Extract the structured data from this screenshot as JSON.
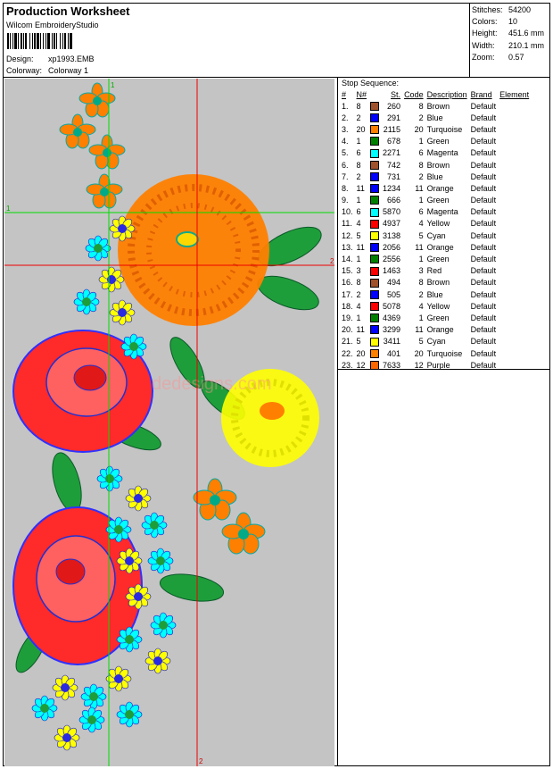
{
  "header": {
    "title": "Production Worksheet",
    "company": "Wilcom EmbroideryStudio",
    "design_label": "Design:",
    "design_value": "xp1993.EMB",
    "colorway_label": "Colorway:",
    "colorway_value": "Colorway 1"
  },
  "stats": [
    {
      "label": "Stitches:",
      "value": "54200"
    },
    {
      "label": "Colors:",
      "value": "10"
    },
    {
      "label": "Height:",
      "value": "451.6 mm"
    },
    {
      "label": "Width:",
      "value": "210.1 mm"
    },
    {
      "label": "Zoom:",
      "value": "0.57"
    }
  ],
  "stop_sequence": {
    "title": "Stop Sequence:",
    "columns": [
      "#",
      "N#",
      "St.",
      "Code",
      "Description",
      "Brand",
      "Element"
    ],
    "rows": [
      {
        "idx": "1.",
        "n": "8",
        "color": "#a0522d",
        "st": "260",
        "code": "8",
        "desc": "Brown",
        "brand": "Default"
      },
      {
        "idx": "2.",
        "n": "2",
        "color": "#0000ff",
        "st": "291",
        "code": "2",
        "desc": "Blue",
        "brand": "Default"
      },
      {
        "idx": "3.",
        "n": "20",
        "color": "#ff7f00",
        "st": "2115",
        "code": "20",
        "desc": "Turquoise",
        "brand": "Default"
      },
      {
        "idx": "4.",
        "n": "1",
        "color": "#008000",
        "st": "678",
        "code": "1",
        "desc": "Green",
        "brand": "Default"
      },
      {
        "idx": "5.",
        "n": "6",
        "color": "#00ffff",
        "st": "2271",
        "code": "6",
        "desc": "Magenta",
        "brand": "Default"
      },
      {
        "idx": "6.",
        "n": "8",
        "color": "#a0522d",
        "st": "742",
        "code": "8",
        "desc": "Brown",
        "brand": "Default"
      },
      {
        "idx": "7.",
        "n": "2",
        "color": "#0000ff",
        "st": "731",
        "code": "2",
        "desc": "Blue",
        "brand": "Default"
      },
      {
        "idx": "8.",
        "n": "11",
        "color": "#0000ff",
        "st": "1234",
        "code": "11",
        "desc": "Orange",
        "brand": "Default"
      },
      {
        "idx": "9.",
        "n": "1",
        "color": "#008000",
        "st": "666",
        "code": "1",
        "desc": "Green",
        "brand": "Default"
      },
      {
        "idx": "10.",
        "n": "6",
        "color": "#00ffff",
        "st": "5870",
        "code": "6",
        "desc": "Magenta",
        "brand": "Default"
      },
      {
        "idx": "11.",
        "n": "4",
        "color": "#ff0000",
        "st": "4937",
        "code": "4",
        "desc": "Yellow",
        "brand": "Default"
      },
      {
        "idx": "12.",
        "n": "5",
        "color": "#ffff00",
        "st": "3138",
        "code": "5",
        "desc": "Cyan",
        "brand": "Default"
      },
      {
        "idx": "13.",
        "n": "11",
        "color": "#0000ff",
        "st": "2056",
        "code": "11",
        "desc": "Orange",
        "brand": "Default"
      },
      {
        "idx": "14.",
        "n": "1",
        "color": "#008000",
        "st": "2556",
        "code": "1",
        "desc": "Green",
        "brand": "Default"
      },
      {
        "idx": "15.",
        "n": "3",
        "color": "#ff0000",
        "st": "1463",
        "code": "3",
        "desc": "Red",
        "brand": "Default"
      },
      {
        "idx": "16.",
        "n": "8",
        "color": "#a0522d",
        "st": "494",
        "code": "8",
        "desc": "Brown",
        "brand": "Default"
      },
      {
        "idx": "17.",
        "n": "2",
        "color": "#0000ff",
        "st": "505",
        "code": "2",
        "desc": "Blue",
        "brand": "Default"
      },
      {
        "idx": "18.",
        "n": "4",
        "color": "#ff0000",
        "st": "5078",
        "code": "4",
        "desc": "Yellow",
        "brand": "Default"
      },
      {
        "idx": "19.",
        "n": "1",
        "color": "#008000",
        "st": "4369",
        "code": "1",
        "desc": "Green",
        "brand": "Default"
      },
      {
        "idx": "20.",
        "n": "11",
        "color": "#0000ff",
        "st": "3299",
        "code": "11",
        "desc": "Orange",
        "brand": "Default"
      },
      {
        "idx": "21.",
        "n": "5",
        "color": "#ffff00",
        "st": "3411",
        "code": "5",
        "desc": "Cyan",
        "brand": "Default"
      },
      {
        "idx": "22.",
        "n": "20",
        "color": "#ff7f00",
        "st": "401",
        "code": "20",
        "desc": "Turquoise",
        "brand": "Default"
      },
      {
        "idx": "23.",
        "n": "12",
        "color": "#ff6600",
        "st": "7633",
        "code": "12",
        "desc": "Purple",
        "brand": "Default"
      }
    ]
  },
  "preview": {
    "background": "#c4c4c4",
    "guide_green": "#00dd00",
    "guide_red": "#ee0000",
    "guide_labels": [
      "1",
      "2",
      "1",
      "2"
    ],
    "watermark": "dedesigns.com"
  }
}
